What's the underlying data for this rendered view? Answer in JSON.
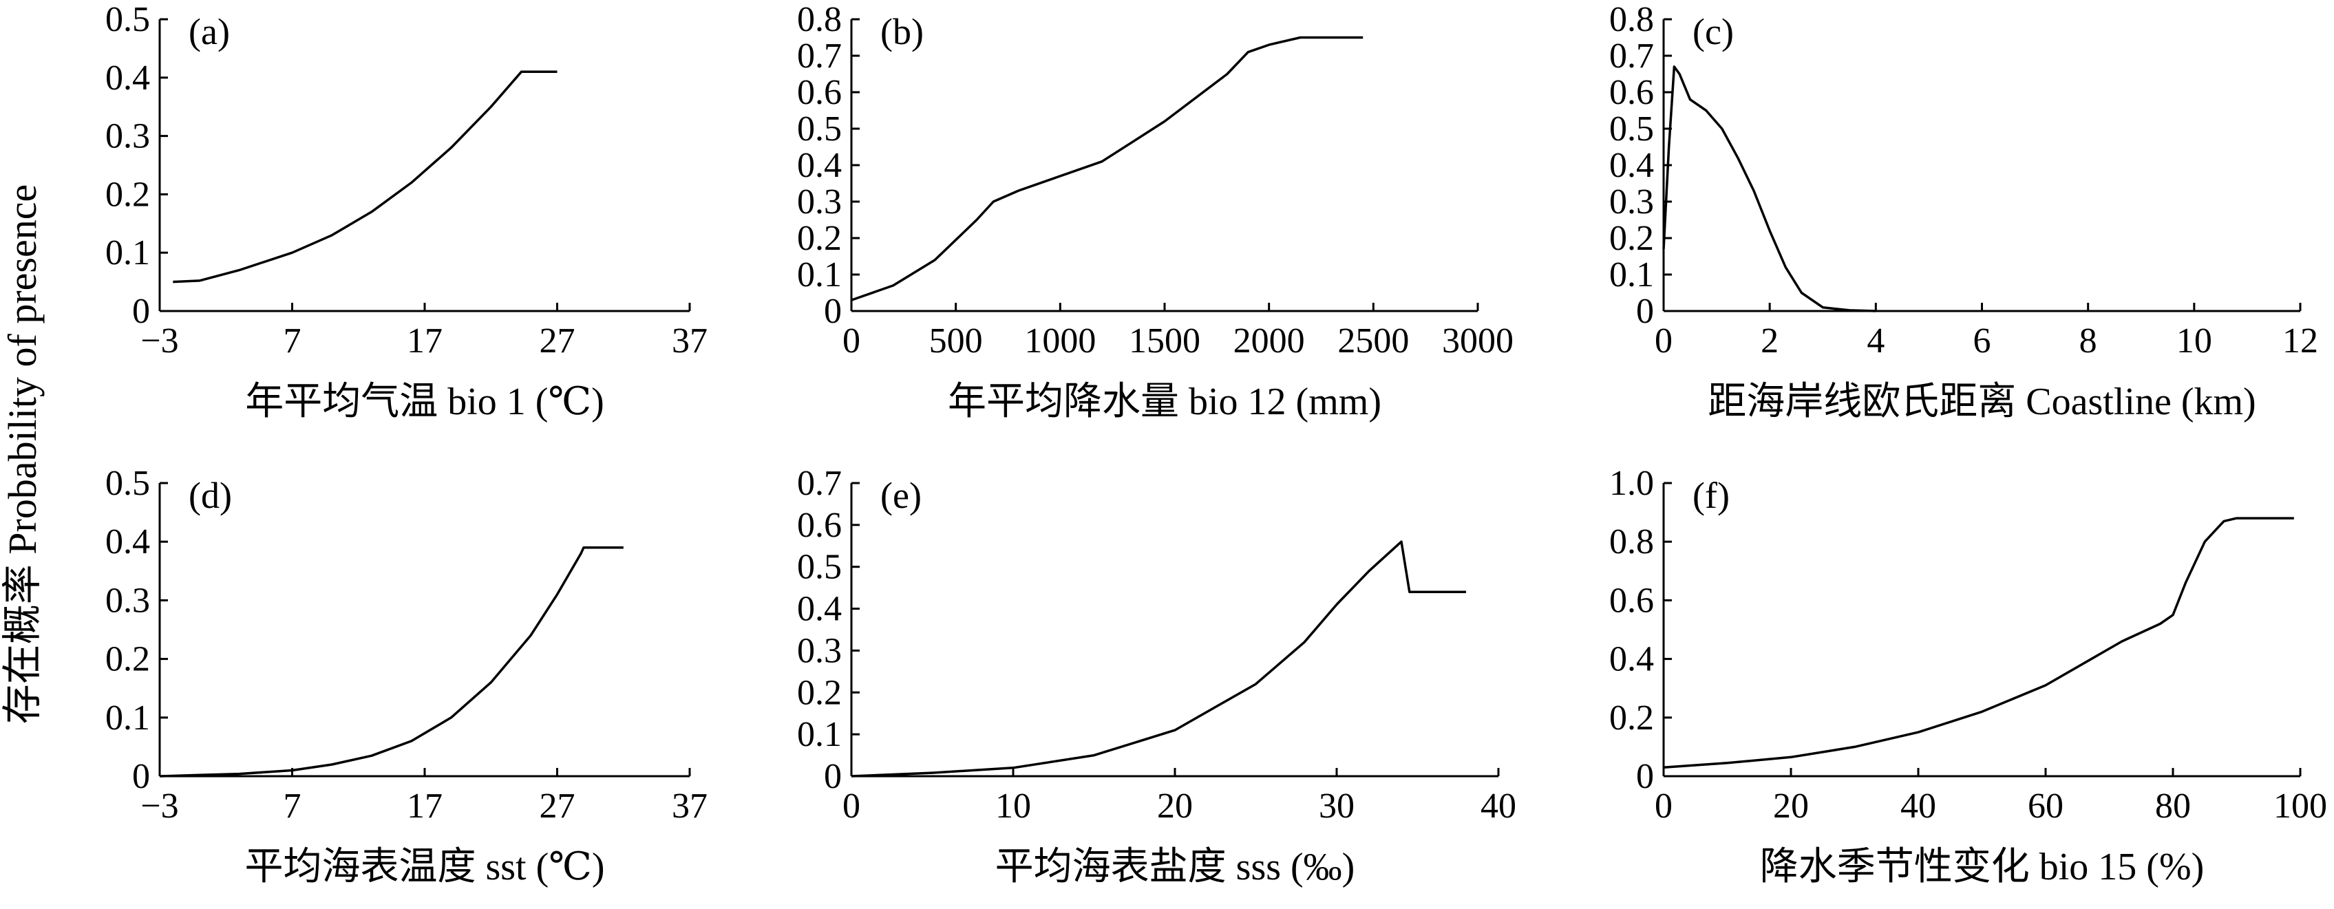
{
  "shared_ylabel": "存在概率 Probability of presence",
  "chart_data": [
    {
      "type": "line",
      "panel": "(a)",
      "xlabel": "年平均气温 bio 1 (℃)",
      "xlim": [
        -3,
        37
      ],
      "xticks": [
        -3,
        7,
        17,
        27,
        37
      ],
      "ylim": [
        0,
        0.5
      ],
      "yticks": [
        0,
        0.1,
        0.2,
        0.3,
        0.4,
        0.5
      ],
      "x": [
        -2,
        0,
        3,
        7,
        10,
        13,
        16,
        19,
        22,
        24.3,
        25,
        27
      ],
      "y": [
        0.05,
        0.052,
        0.07,
        0.1,
        0.13,
        0.17,
        0.22,
        0.28,
        0.35,
        0.41,
        0.41,
        0.41
      ]
    },
    {
      "type": "line",
      "panel": "(b)",
      "xlabel": "年平均降水量 bio 12 (mm)",
      "xlim": [
        0,
        3000
      ],
      "xticks": [
        0,
        500,
        1000,
        1500,
        2000,
        2500,
        3000
      ],
      "ylim": [
        0,
        0.8
      ],
      "yticks": [
        0,
        0.1,
        0.2,
        0.3,
        0.4,
        0.5,
        0.6,
        0.7,
        0.8
      ],
      "x": [
        0,
        200,
        400,
        600,
        680,
        800,
        1000,
        1200,
        1500,
        1800,
        1900,
        2000,
        2150,
        2450
      ],
      "y": [
        0.03,
        0.07,
        0.14,
        0.25,
        0.3,
        0.33,
        0.37,
        0.41,
        0.52,
        0.65,
        0.71,
        0.73,
        0.75,
        0.75
      ]
    },
    {
      "type": "line",
      "panel": "(c)",
      "xlabel": "距海岸线欧氏距离 Coastline (km)",
      "xlim": [
        0,
        12
      ],
      "xticks": [
        0,
        2,
        4,
        6,
        8,
        10,
        12
      ],
      "ylim": [
        0,
        0.8
      ],
      "yticks": [
        0,
        0.1,
        0.2,
        0.3,
        0.4,
        0.5,
        0.6,
        0.7,
        0.8
      ],
      "x": [
        0.0,
        0.1,
        0.2,
        0.3,
        0.5,
        0.8,
        1.1,
        1.4,
        1.7,
        2.0,
        2.3,
        2.6,
        3.0,
        3.5,
        4.0
      ],
      "y": [
        0.17,
        0.45,
        0.67,
        0.65,
        0.58,
        0.55,
        0.5,
        0.42,
        0.33,
        0.22,
        0.12,
        0.05,
        0.01,
        0.002,
        0.0
      ]
    },
    {
      "type": "line",
      "panel": "(d)",
      "xlabel": "平均海表温度 sst (℃)",
      "xlim": [
        -3,
        37
      ],
      "xticks": [
        -3,
        7,
        17,
        27,
        37
      ],
      "ylim": [
        0,
        0.5
      ],
      "yticks": [
        0,
        0.1,
        0.2,
        0.3,
        0.4,
        0.5
      ],
      "x": [
        -3,
        0,
        3,
        7,
        10,
        13,
        16,
        19,
        22,
        25,
        27,
        28.8,
        29,
        32
      ],
      "y": [
        0.0,
        0.002,
        0.004,
        0.01,
        0.02,
        0.035,
        0.06,
        0.1,
        0.16,
        0.24,
        0.31,
        0.38,
        0.39,
        0.39
      ]
    },
    {
      "type": "line",
      "panel": "(e)",
      "xlabel": "平均海表盐度 sss (‰)",
      "xlim": [
        0,
        40
      ],
      "xticks": [
        0,
        10,
        20,
        30,
        40
      ],
      "ylim": [
        0,
        0.7
      ],
      "yticks": [
        0,
        0.1,
        0.2,
        0.3,
        0.4,
        0.5,
        0.6,
        0.7
      ],
      "x": [
        0,
        5,
        10,
        15,
        20,
        25,
        28,
        30,
        32,
        34,
        34.5,
        38
      ],
      "y": [
        0.0,
        0.008,
        0.02,
        0.05,
        0.11,
        0.22,
        0.32,
        0.41,
        0.49,
        0.56,
        0.44,
        0.44
      ]
    },
    {
      "type": "line",
      "panel": "(f)",
      "xlabel": "降水季节性变化 bio 15 (%)",
      "xlim": [
        0,
        100
      ],
      "xticks": [
        0,
        20,
        40,
        60,
        80,
        100
      ],
      "ylim": [
        0,
        1.0
      ],
      "yticks": [
        0,
        0.2,
        0.4,
        0.6,
        0.8,
        1.0
      ],
      "x": [
        0,
        10,
        20,
        30,
        40,
        50,
        60,
        72,
        78,
        80,
        82,
        85,
        88,
        90,
        99
      ],
      "y": [
        0.03,
        0.045,
        0.065,
        0.1,
        0.15,
        0.22,
        0.31,
        0.46,
        0.52,
        0.55,
        0.66,
        0.8,
        0.87,
        0.88,
        0.88
      ]
    }
  ]
}
